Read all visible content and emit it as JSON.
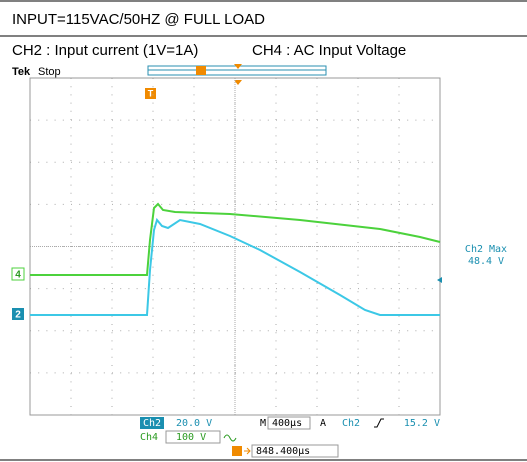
{
  "header": {
    "line1": "INPUT=115VAC/50HZ @ FULL LOAD",
    "ch2_label": "CH2 : Input current (1V=1A)",
    "ch4_label": "CH4 : AC Input Voltage"
  },
  "scope": {
    "brand": "Tek",
    "state": "Stop",
    "trigger_marker": "T",
    "measure": {
      "name": "Ch2 Max",
      "value": "48.4 V"
    },
    "channel_markers": {
      "ch4": "4",
      "ch2": "2"
    },
    "status": {
      "ch2": "Ch2",
      "ch2_scale": "20.0 V",
      "m": "M",
      "timebase": "400µs",
      "a": "A",
      "trig_src": "Ch2",
      "trig_level": "15.2 V",
      "ch4": "Ch4",
      "ch4_scale": "100 V",
      "position": "848.400µs"
    }
  }
}
